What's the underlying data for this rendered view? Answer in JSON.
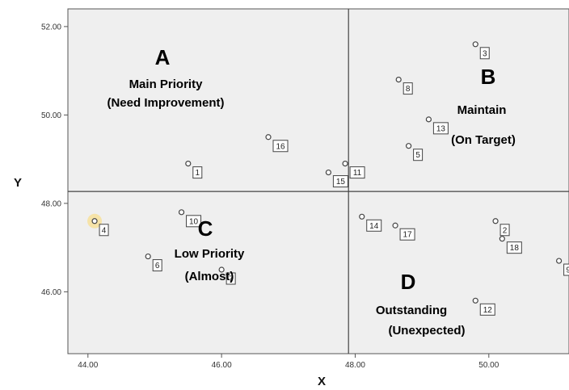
{
  "chart_data": {
    "type": "scatter",
    "xlabel": "X",
    "ylabel": "Y",
    "xlim": [
      43.7,
      51.2
    ],
    "ylim": [
      44.6,
      52.4
    ],
    "x_ticks": [
      "44.00",
      "46.00",
      "48.00",
      "50.00"
    ],
    "y_ticks": [
      "46.00",
      "48.00",
      "50.00",
      "52.00"
    ],
    "divider_x": 47.9,
    "divider_y": 48.27,
    "points": [
      {
        "label": "1",
        "x": 45.5,
        "y": 48.9
      },
      {
        "label": "2",
        "x": 50.1,
        "y": 47.6
      },
      {
        "label": "3",
        "x": 49.8,
        "y": 51.6
      },
      {
        "label": "4",
        "x": 44.1,
        "y": 47.6,
        "highlight": true
      },
      {
        "label": "5",
        "x": 48.8,
        "y": 49.3
      },
      {
        "label": "6",
        "x": 44.9,
        "y": 46.8
      },
      {
        "label": "7",
        "x": 46.0,
        "y": 46.5
      },
      {
        "label": "8",
        "x": 48.65,
        "y": 50.8
      },
      {
        "label": "9",
        "x": 51.05,
        "y": 46.7
      },
      {
        "label": "10",
        "x": 45.4,
        "y": 47.8
      },
      {
        "label": "11",
        "x": 47.85,
        "y": 48.9
      },
      {
        "label": "12",
        "x": 49.8,
        "y": 45.8
      },
      {
        "label": "13",
        "x": 49.1,
        "y": 49.9
      },
      {
        "label": "14",
        "x": 48.1,
        "y": 47.7
      },
      {
        "label": "15",
        "x": 47.6,
        "y": 48.7
      },
      {
        "label": "16",
        "x": 46.7,
        "y": 49.5
      },
      {
        "label": "17",
        "x": 48.6,
        "y": 47.5
      },
      {
        "label": "18",
        "x": 50.2,
        "y": 47.2
      }
    ],
    "quadrants": [
      {
        "letter": "A",
        "line1": "Main Priority",
        "line2": "(Need Improvement)"
      },
      {
        "letter": "B",
        "line1": "Maintain",
        "line2": "(On Target)"
      },
      {
        "letter": "C",
        "line1": "Low Priority",
        "line2": "(Almost)"
      },
      {
        "letter": "D",
        "line1": "Outstanding",
        "line2": "(Unexpected)"
      }
    ]
  },
  "colors": {
    "plot_bg": "#efefef",
    "axis": "#555555",
    "divider": "#444444",
    "marker": "#444444",
    "highlight": "#f6e3a8"
  }
}
